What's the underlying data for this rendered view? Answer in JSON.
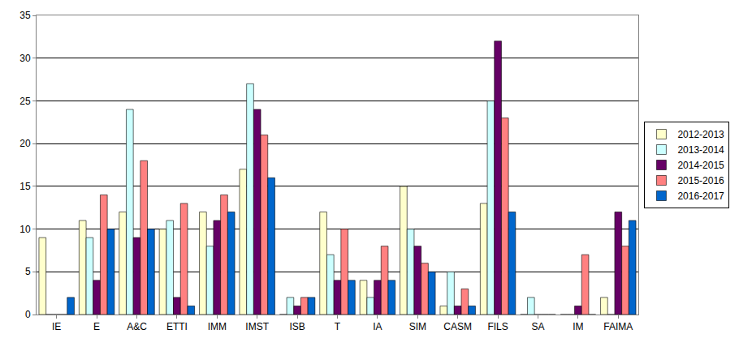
{
  "chart_data": {
    "type": "bar",
    "categories": [
      "IE",
      "E",
      "A&C",
      "ETTI",
      "IMM",
      "IMST",
      "ISB",
      "T",
      "IA",
      "SIM",
      "CASM",
      "FILS",
      "SA",
      "IM",
      "FAIMA"
    ],
    "series": [
      {
        "name": "2012-2013",
        "color": "#FFFFCC",
        "values": [
          9,
          11,
          12,
          10,
          12,
          17,
          0,
          12,
          4,
          15,
          1,
          13,
          0,
          0,
          2
        ]
      },
      {
        "name": "2013-2014",
        "color": "#CCFFFF",
        "values": [
          0,
          9,
          24,
          11,
          8,
          27,
          2,
          7,
          2,
          10,
          5,
          25,
          2,
          0,
          0
        ]
      },
      {
        "name": "2014-2015",
        "color": "#660066",
        "values": [
          0,
          4,
          9,
          2,
          11,
          24,
          1,
          4,
          4,
          8,
          1,
          32,
          0,
          1,
          12
        ]
      },
      {
        "name": "2015-2016",
        "color": "#FF8080",
        "values": [
          0,
          14,
          18,
          13,
          14,
          21,
          2,
          10,
          8,
          6,
          3,
          23,
          0,
          7,
          8
        ]
      },
      {
        "name": "2016-2017",
        "color": "#0066CC",
        "values": [
          2,
          10,
          10,
          1,
          12,
          16,
          2,
          4,
          4,
          5,
          1,
          12,
          0,
          0,
          11
        ]
      }
    ],
    "ylim": [
      0,
      35
    ],
    "yticks": [
      0,
      5,
      10,
      15,
      20,
      25,
      30,
      35
    ],
    "grid": true,
    "legend": "right"
  }
}
